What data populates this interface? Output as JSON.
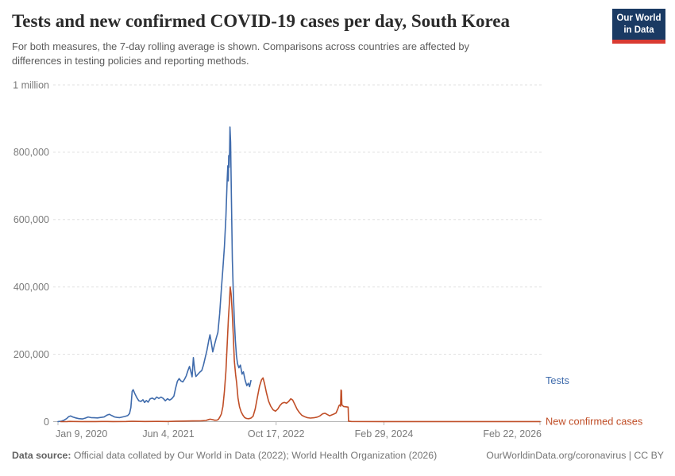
{
  "header": {
    "title": "Tests and new confirmed COVID-19 cases per day, South Korea",
    "subtitle": "For both measures, the 7-day rolling average is shown. Comparisons across countries are affected by differences in testing policies and reporting methods.",
    "logo": {
      "line1": "Our World",
      "line2": "in Data",
      "bg_color": "#1a3a63",
      "bar_color": "#d93a32"
    }
  },
  "footer": {
    "label": "Data source:",
    "text": "Official data collated by Our World in Data (2022); World Health Organization (2026)",
    "right": "OurWorldinData.org/coronavirus | CC BY"
  },
  "chart_data": {
    "type": "line",
    "title": "Tests and new confirmed COVID-19 cases per day, South Korea",
    "grid": "dashed-horizontal",
    "legend_position": "right-edge-labels",
    "colors": {
      "tests": "#3f6bac",
      "cases": "#c04e27",
      "axis_text": "#7a7a7a",
      "gridline": "#e0e0e0",
      "axis_line": "#b3b3b3"
    },
    "y_axis": {
      "range": [
        0,
        1000000
      ],
      "values": [
        0,
        200000,
        400000,
        600000,
        800000,
        1000000
      ],
      "labels": [
        "0",
        "200,000",
        "400,000",
        "600,000",
        "800,000",
        "1 million"
      ]
    },
    "x_axis": {
      "range": [
        "2020-01-09",
        "2026-02-22"
      ],
      "ticks": [
        {
          "date": "2020-01-09",
          "label": "Jan 9, 2020",
          "anchor": "start"
        },
        {
          "date": "2021-06-04",
          "label": "Jun 4, 2021",
          "anchor": "middle"
        },
        {
          "date": "2022-10-17",
          "label": "Oct 17, 2022",
          "anchor": "middle"
        },
        {
          "date": "2024-02-29",
          "label": "Feb 29, 2024",
          "anchor": "middle"
        },
        {
          "date": "2026-02-22",
          "label": "Feb 22, 2026",
          "anchor": "end"
        }
      ]
    },
    "series": [
      {
        "name": "Tests",
        "color": "#3f6bac",
        "points": [
          [
            "2020-01-09",
            300
          ],
          [
            "2020-01-25",
            1500
          ],
          [
            "2020-02-05",
            4000
          ],
          [
            "2020-02-18",
            9000
          ],
          [
            "2020-02-28",
            15000
          ],
          [
            "2020-03-08",
            17000
          ],
          [
            "2020-03-18",
            14000
          ],
          [
            "2020-04-01",
            11000
          ],
          [
            "2020-04-15",
            9000
          ],
          [
            "2020-05-01",
            8000
          ],
          [
            "2020-05-15",
            10500
          ],
          [
            "2020-05-28",
            14000
          ],
          [
            "2020-06-10",
            12000
          ],
          [
            "2020-06-25",
            11500
          ],
          [
            "2020-07-10",
            11000
          ],
          [
            "2020-07-25",
            12500
          ],
          [
            "2020-08-10",
            14000
          ],
          [
            "2020-08-22",
            19000
          ],
          [
            "2020-09-03",
            22000
          ],
          [
            "2020-09-15",
            18000
          ],
          [
            "2020-09-28",
            14000
          ],
          [
            "2020-10-10",
            12500
          ],
          [
            "2020-10-22",
            12000
          ],
          [
            "2020-11-03",
            14000
          ],
          [
            "2020-11-15",
            15500
          ],
          [
            "2020-11-27",
            18000
          ],
          [
            "2020-12-06",
            24000
          ],
          [
            "2020-12-12",
            42000
          ],
          [
            "2020-12-18",
            90000
          ],
          [
            "2020-12-23",
            95000
          ],
          [
            "2020-12-30",
            84000
          ],
          [
            "2021-01-08",
            72000
          ],
          [
            "2021-01-18",
            62000
          ],
          [
            "2021-01-28",
            60000
          ],
          [
            "2021-02-06",
            65000
          ],
          [
            "2021-02-14",
            57000
          ],
          [
            "2021-02-22",
            63000
          ],
          [
            "2021-03-02",
            58000
          ],
          [
            "2021-03-12",
            68000
          ],
          [
            "2021-03-22",
            70000
          ],
          [
            "2021-04-01",
            66000
          ],
          [
            "2021-04-11",
            73000
          ],
          [
            "2021-04-21",
            69000
          ],
          [
            "2021-05-01",
            73000
          ],
          [
            "2021-05-11",
            69000
          ],
          [
            "2021-05-21",
            62000
          ],
          [
            "2021-05-31",
            68000
          ],
          [
            "2021-06-10",
            64000
          ],
          [
            "2021-06-20",
            68000
          ],
          [
            "2021-06-30",
            76000
          ],
          [
            "2021-07-08",
            100000
          ],
          [
            "2021-07-16",
            120000
          ],
          [
            "2021-07-24",
            128000
          ],
          [
            "2021-08-01",
            121000
          ],
          [
            "2021-08-10",
            118000
          ],
          [
            "2021-08-18",
            126000
          ],
          [
            "2021-08-26",
            136000
          ],
          [
            "2021-09-03",
            152000
          ],
          [
            "2021-09-10",
            164000
          ],
          [
            "2021-09-16",
            150000
          ],
          [
            "2021-09-22",
            133000
          ],
          [
            "2021-09-28",
            190000
          ],
          [
            "2021-10-04",
            155000
          ],
          [
            "2021-10-10",
            134000
          ],
          [
            "2021-10-18",
            140000
          ],
          [
            "2021-10-28",
            147000
          ],
          [
            "2021-11-06",
            152000
          ],
          [
            "2021-11-14",
            168000
          ],
          [
            "2021-11-22",
            190000
          ],
          [
            "2021-11-30",
            212000
          ],
          [
            "2021-12-08",
            240000
          ],
          [
            "2021-12-14",
            258000
          ],
          [
            "2021-12-20",
            236000
          ],
          [
            "2021-12-27",
            207000
          ],
          [
            "2022-01-04",
            228000
          ],
          [
            "2022-01-12",
            248000
          ],
          [
            "2022-01-20",
            265000
          ],
          [
            "2022-01-28",
            320000
          ],
          [
            "2022-02-05",
            395000
          ],
          [
            "2022-02-12",
            455000
          ],
          [
            "2022-02-19",
            520000
          ],
          [
            "2022-02-26",
            610000
          ],
          [
            "2022-03-04",
            720000
          ],
          [
            "2022-03-07",
            760000
          ],
          [
            "2022-03-09",
            715000
          ],
          [
            "2022-03-11",
            790000
          ],
          [
            "2022-03-13",
            755000
          ],
          [
            "2022-03-15",
            800000
          ],
          [
            "2022-03-17",
            875000
          ],
          [
            "2022-03-20",
            830000
          ],
          [
            "2022-03-24",
            650000
          ],
          [
            "2022-03-28",
            480000
          ],
          [
            "2022-04-01",
            390000
          ],
          [
            "2022-04-06",
            300000
          ],
          [
            "2022-04-11",
            240000
          ],
          [
            "2022-04-16",
            195000
          ],
          [
            "2022-04-21",
            172000
          ],
          [
            "2022-04-27",
            160000
          ],
          [
            "2022-05-04",
            168000
          ],
          [
            "2022-05-12",
            141000
          ],
          [
            "2022-05-18",
            148000
          ],
          [
            "2022-05-26",
            124000
          ],
          [
            "2022-06-03",
            107000
          ],
          [
            "2022-06-10",
            114000
          ],
          [
            "2022-06-16",
            104000
          ],
          [
            "2022-06-22",
            122000
          ]
        ]
      },
      {
        "name": "New confirmed cases",
        "color": "#c04e27",
        "points": [
          [
            "2020-01-22",
            100
          ],
          [
            "2020-02-20",
            300
          ],
          [
            "2020-03-03",
            600
          ],
          [
            "2020-03-20",
            400
          ],
          [
            "2020-05-01",
            200
          ],
          [
            "2020-07-01",
            300
          ],
          [
            "2020-08-25",
            400
          ],
          [
            "2020-09-20",
            300
          ],
          [
            "2020-11-20",
            400
          ],
          [
            "2020-12-15",
            900
          ],
          [
            "2020-12-25",
            1000
          ],
          [
            "2021-01-15",
            600
          ],
          [
            "2021-02-15",
            450
          ],
          [
            "2021-04-15",
            600
          ],
          [
            "2021-06-01",
            550
          ],
          [
            "2021-07-10",
            1300
          ],
          [
            "2021-08-15",
            1700
          ],
          [
            "2021-09-25",
            2200
          ],
          [
            "2021-11-01",
            2300
          ],
          [
            "2021-11-25",
            3500
          ],
          [
            "2021-12-10",
            6500
          ],
          [
            "2021-12-15",
            7200
          ],
          [
            "2021-12-25",
            6200
          ],
          [
            "2022-01-05",
            4200
          ],
          [
            "2022-01-15",
            4500
          ],
          [
            "2022-01-22",
            6500
          ],
          [
            "2022-01-29",
            14000
          ],
          [
            "2022-02-05",
            23000
          ],
          [
            "2022-02-12",
            45000
          ],
          [
            "2022-02-19",
            90000
          ],
          [
            "2022-02-26",
            150000
          ],
          [
            "2022-03-04",
            230000
          ],
          [
            "2022-03-10",
            310000
          ],
          [
            "2022-03-14",
            350000
          ],
          [
            "2022-03-18",
            400000
          ],
          [
            "2022-03-22",
            380000
          ],
          [
            "2022-03-27",
            330000
          ],
          [
            "2022-04-01",
            260000
          ],
          [
            "2022-04-06",
            180000
          ],
          [
            "2022-04-12",
            140000
          ],
          [
            "2022-04-17",
            115000
          ],
          [
            "2022-04-23",
            70000
          ],
          [
            "2022-04-30",
            44000
          ],
          [
            "2022-05-08",
            29000
          ],
          [
            "2022-05-16",
            19000
          ],
          [
            "2022-05-24",
            12000
          ],
          [
            "2022-06-02",
            9500
          ],
          [
            "2022-06-12",
            8800
          ],
          [
            "2022-06-22",
            10500
          ],
          [
            "2022-07-02",
            16000
          ],
          [
            "2022-07-12",
            38000
          ],
          [
            "2022-07-22",
            72000
          ],
          [
            "2022-08-01",
            105000
          ],
          [
            "2022-08-10",
            124000
          ],
          [
            "2022-08-17",
            130000
          ],
          [
            "2022-08-24",
            113000
          ],
          [
            "2022-09-02",
            86000
          ],
          [
            "2022-09-12",
            61000
          ],
          [
            "2022-09-22",
            46000
          ],
          [
            "2022-10-03",
            35000
          ],
          [
            "2022-10-14",
            31000
          ],
          [
            "2022-10-25",
            38000
          ],
          [
            "2022-11-04",
            48000
          ],
          [
            "2022-11-14",
            55000
          ],
          [
            "2022-11-24",
            57000
          ],
          [
            "2022-12-04",
            55000
          ],
          [
            "2022-12-14",
            60000
          ],
          [
            "2022-12-24",
            68000
          ],
          [
            "2023-01-02",
            64000
          ],
          [
            "2023-01-12",
            51000
          ],
          [
            "2023-01-22",
            37000
          ],
          [
            "2023-02-02",
            27000
          ],
          [
            "2023-02-13",
            19000
          ],
          [
            "2023-02-25",
            15000
          ],
          [
            "2023-03-10",
            12000
          ],
          [
            "2023-03-25",
            10500
          ],
          [
            "2023-04-10",
            11500
          ],
          [
            "2023-04-25",
            13500
          ],
          [
            "2023-05-08",
            17000
          ],
          [
            "2023-05-20",
            23000
          ],
          [
            "2023-06-01",
            25000
          ],
          [
            "2023-06-12",
            21000
          ],
          [
            "2023-06-22",
            17500
          ],
          [
            "2023-07-02",
            20000
          ],
          [
            "2023-07-12",
            22500
          ],
          [
            "2023-07-22",
            26000
          ],
          [
            "2023-07-30",
            38000
          ],
          [
            "2023-08-05",
            48000
          ],
          [
            "2023-08-09",
            50000
          ],
          [
            "2023-08-12",
            46000
          ],
          [
            "2023-08-14",
            94000
          ],
          [
            "2023-08-15",
            58000
          ],
          [
            "2023-08-16",
            92000
          ],
          [
            "2023-08-18",
            50000
          ],
          [
            "2023-08-26",
            45000
          ],
          [
            "2023-09-06",
            44000
          ],
          [
            "2023-09-16",
            43000
          ],
          [
            "2023-09-18",
            1500
          ],
          [
            "2023-10-01",
            500
          ],
          [
            "2024-03-01",
            300
          ],
          [
            "2025-03-01",
            250
          ],
          [
            "2026-02-22",
            250
          ]
        ]
      }
    ]
  }
}
